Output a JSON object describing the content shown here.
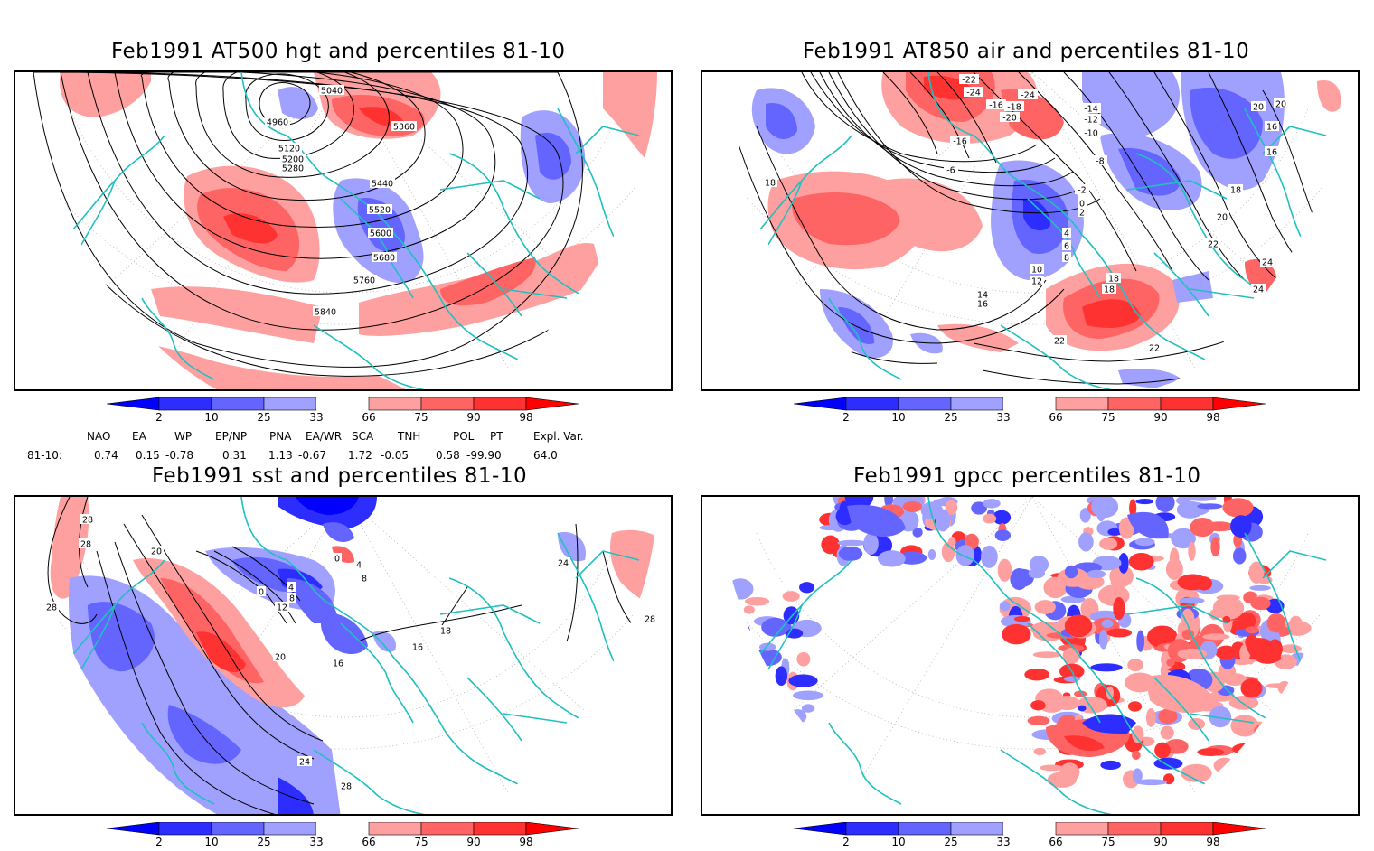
{
  "panels": [
    {
      "id": "hgt",
      "title": "Feb1991 AT500 hgt and percentiles 81-10",
      "contour_labels": [
        "5040",
        "4960",
        "5360",
        "5120",
        "5200",
        "5280",
        "5440",
        "5520",
        "5600",
        "5680",
        "5760",
        "5840"
      ]
    },
    {
      "id": "air",
      "title": "Feb1991 AT850 air and percentiles 81-10",
      "contour_labels": [
        "-22",
        "-24",
        "-24",
        "-18",
        "-16",
        "-20",
        "-14",
        "-12",
        "-10",
        "-16",
        "-8",
        "-6",
        "-2",
        "0",
        "2",
        "4",
        "6",
        "8",
        "10",
        "12",
        "14",
        "16",
        "18",
        "18",
        "20",
        "20",
        "22",
        "22",
        "24",
        "24",
        "16",
        "16",
        "18",
        "18",
        "20",
        "22"
      ]
    },
    {
      "id": "sst",
      "title": "Feb1991 sst and percentiles 81-10",
      "contour_labels": [
        "28",
        "28",
        "28",
        "20",
        "0",
        "0",
        "4",
        "4",
        "8",
        "8",
        "12",
        "20",
        "16",
        "16",
        "18",
        "24",
        "24",
        "28",
        "28"
      ]
    },
    {
      "id": "gpcc",
      "title": "Feb1991 gpcc percentiles 81-10",
      "contour_labels": []
    }
  ],
  "colorbar": {
    "labels": [
      "2",
      "10",
      "25",
      "33",
      "66",
      "75",
      "90",
      "98"
    ],
    "colors": {
      "blue_extreme": "#0000ff",
      "blue_dark": "#2d2dff",
      "blue_mid": "#6464ff",
      "blue_light": "#a0a0ff",
      "red_light": "#ffa0a0",
      "red_mid": "#ff6464",
      "red_dark": "#ff3232",
      "red_extreme": "#ff0000"
    }
  },
  "teleconnections": {
    "row_label": "81-10:",
    "headers": [
      "NAO",
      "EA",
      "WP",
      "EP/NP",
      "PNA",
      "EA/WR",
      "SCA",
      "TNH",
      "POL",
      "PT",
      "Expl. Var."
    ],
    "values": [
      "0.74",
      "0.15",
      "-0.78",
      "0.31",
      "1.13",
      "-0.67",
      "1.72",
      "-0.05",
      "0.58",
      "-99.90",
      "64.0"
    ]
  },
  "map_colors": {
    "coast": "#20c0c0",
    "contour": "#000000",
    "grid": "#aaaaaa"
  }
}
